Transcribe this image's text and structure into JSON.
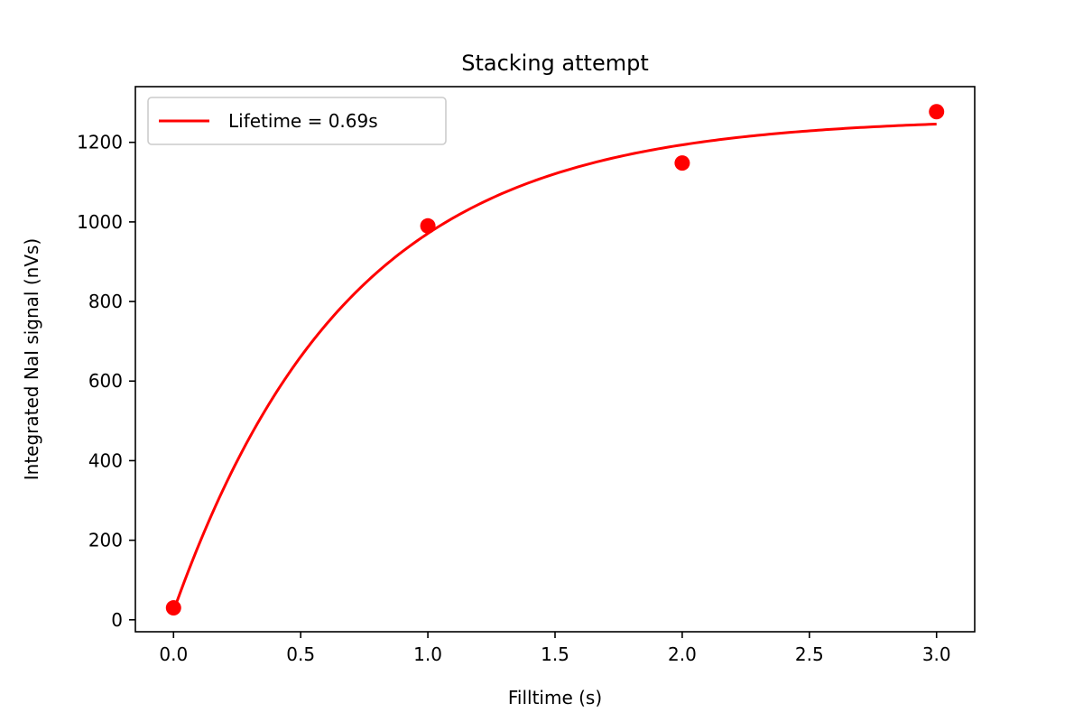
{
  "chart_data": {
    "type": "scatter",
    "title": "Stacking attempt",
    "xlabel": "Filltime (s)",
    "ylabel": "Integrated NaI signal (nVs)",
    "xlim": [
      -0.15,
      3.15
    ],
    "ylim": [
      -30,
      1340
    ],
    "xticks": [
      0.0,
      0.5,
      1.0,
      1.5,
      2.0,
      2.5,
      3.0
    ],
    "xtick_labels": [
      "0.0",
      "0.5",
      "1.0",
      "1.5",
      "2.0",
      "2.5",
      "3.0"
    ],
    "yticks": [
      0,
      200,
      400,
      600,
      800,
      1000,
      1200
    ],
    "ytick_labels": [
      "0",
      "200",
      "400",
      "600",
      "800",
      "1000",
      "1200"
    ],
    "grid": false,
    "legend_position": "top-left",
    "points": {
      "x": [
        0.0,
        1.0,
        2.0,
        3.0
      ],
      "y": [
        30,
        990,
        1148,
        1277
      ],
      "color": "#ff0000"
    },
    "fit": {
      "name": "Lifetime = 0.69s",
      "color": "#ff0000",
      "model": "y = a * (1 - exp(-x / tau)) + c",
      "a": 1240,
      "tau": 0.69,
      "c": 22,
      "x_range": [
        0.0,
        3.0
      ]
    }
  }
}
